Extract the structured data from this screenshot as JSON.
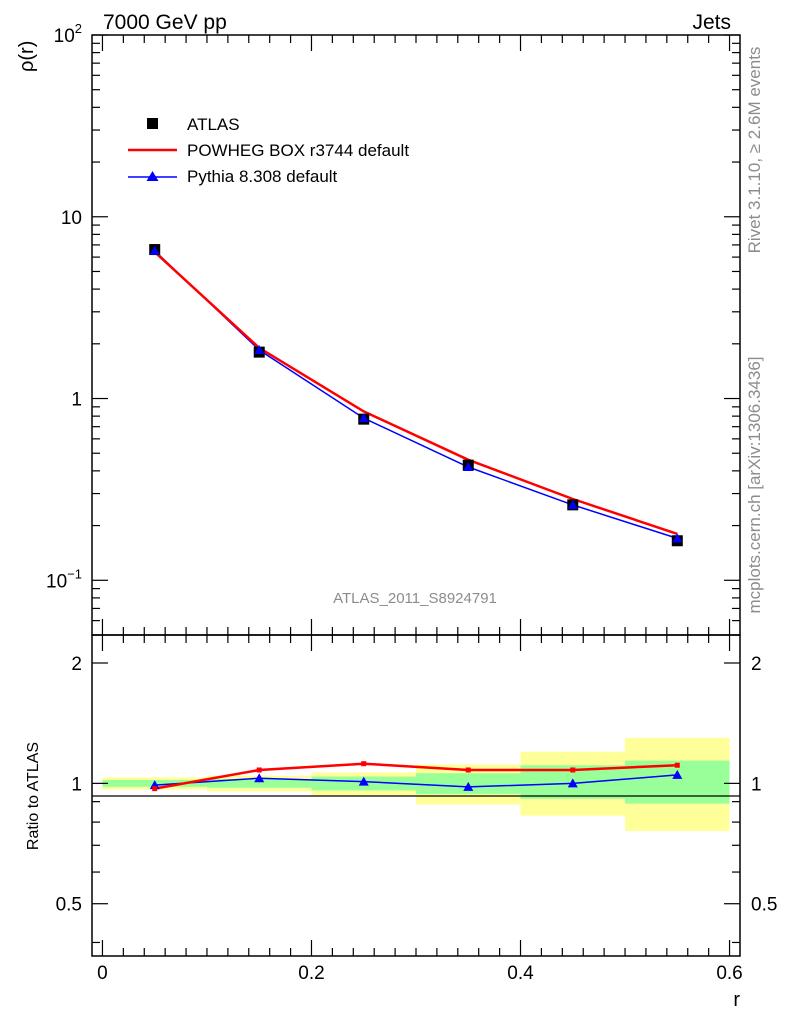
{
  "header": {
    "left": "7000 GeV pp",
    "right": "Jets"
  },
  "side_labels": {
    "top": "Rivet 3.1.10, ≥ 2.6M events",
    "bottom": "mcplots.cern.ch [arXiv:1306.3436]"
  },
  "analysis_id": "ATLAS_2011_S8924791",
  "main_ylabel": "ρ(r)",
  "ratio_ylabel": "Ratio to ATLAS",
  "xlabel": "r",
  "main_yticks": [
    {
      "base": "10",
      "exp": "2",
      "value": 100
    },
    {
      "base": "10",
      "exp": "",
      "value": 10
    },
    {
      "base": "1",
      "exp": "",
      "value": 1
    },
    {
      "base": "10",
      "exp": "−1",
      "value": 0.1
    }
  ],
  "ratio_yticks": [
    {
      "label": "2",
      "value": 2
    },
    {
      "label": "1",
      "value": 1
    },
    {
      "label": "0.5",
      "value": 0.5
    }
  ],
  "xticks": [
    {
      "label": "0",
      "value": 0
    },
    {
      "label": "0.2",
      "value": 0.2
    },
    {
      "label": "0.4",
      "value": 0.4
    },
    {
      "label": "0.6",
      "value": 0.6
    }
  ],
  "colors": {
    "atlas": "#000000",
    "powheg": "#ff0000",
    "pythia": "#0000ff",
    "band_outer": "#ffff99",
    "band_inner": "#99ff99"
  },
  "chart_data": [
    {
      "type": "line",
      "panel": "main",
      "ylabel": "ρ(r)",
      "ylim": [
        0.05,
        100
      ],
      "xlim": [
        -0.01,
        0.61
      ],
      "log_y": true,
      "legend_placement": "top-left",
      "series": [
        {
          "name": "ATLAS",
          "style": "markers-square",
          "x": [
            0.05,
            0.15,
            0.25,
            0.35,
            0.45,
            0.55
          ],
          "y": [
            6.6,
            1.8,
            0.77,
            0.43,
            0.26,
            0.165
          ]
        },
        {
          "name": "POWHEG BOX r3744 default",
          "style": "line",
          "x": [
            0.05,
            0.15,
            0.25,
            0.35,
            0.45,
            0.55
          ],
          "y": [
            6.4,
            1.9,
            0.85,
            0.46,
            0.28,
            0.18
          ]
        },
        {
          "name": "Pythia 8.308 default",
          "style": "line-triangles",
          "x": [
            0.05,
            0.15,
            0.25,
            0.35,
            0.45,
            0.55
          ],
          "y": [
            6.5,
            1.85,
            0.78,
            0.42,
            0.26,
            0.17
          ]
        }
      ]
    },
    {
      "type": "line",
      "panel": "ratio",
      "ylabel": "Ratio to ATLAS",
      "xlabel": "r",
      "ylim": [
        0.37,
        2.35
      ],
      "xlim": [
        -0.01,
        0.61
      ],
      "log_y": true,
      "bins": [
        0,
        0.1,
        0.2,
        0.3,
        0.4,
        0.5,
        0.6
      ],
      "band_outer": [
        [
          0.965,
          1.035
        ],
        [
          0.955,
          1.045
        ],
        [
          0.93,
          1.065
        ],
        [
          0.885,
          1.115
        ],
        [
          0.83,
          1.2
        ],
        [
          0.76,
          1.3
        ]
      ],
      "band_inner": [
        [
          0.98,
          1.02
        ],
        [
          0.975,
          1.025
        ],
        [
          0.96,
          1.04
        ],
        [
          0.94,
          1.06
        ],
        [
          0.915,
          1.11
        ],
        [
          0.89,
          1.14
        ]
      ],
      "series": [
        {
          "name": "POWHEG BOX r3744 default",
          "x": [
            0.05,
            0.15,
            0.25,
            0.35,
            0.45,
            0.55
          ],
          "y": [
            0.97,
            1.08,
            1.12,
            1.08,
            1.08,
            1.11
          ]
        },
        {
          "name": "Pythia 8.308 default",
          "x": [
            0.05,
            0.15,
            0.25,
            0.35,
            0.45,
            0.55
          ],
          "y": [
            0.99,
            1.03,
            1.01,
            0.98,
            1.0,
            1.05
          ]
        }
      ]
    }
  ]
}
